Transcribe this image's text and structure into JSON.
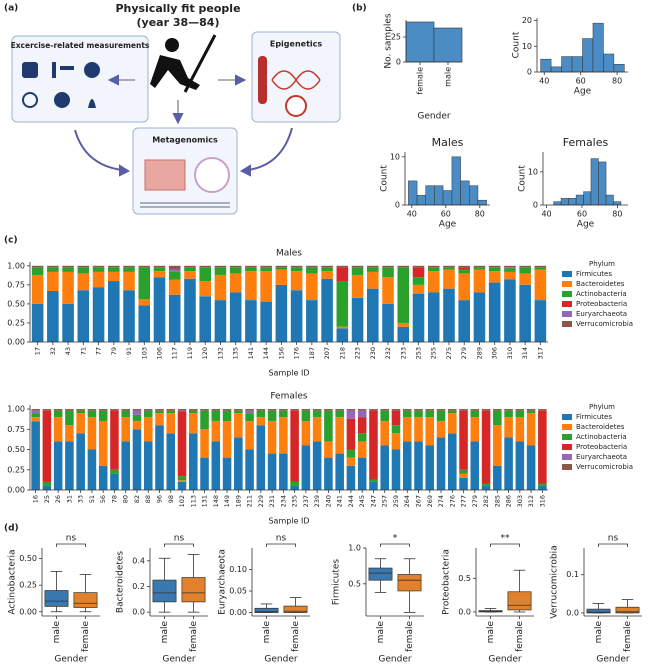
{
  "panel_labels": [
    "(a)",
    "(b)",
    "(c)",
    "(d)"
  ],
  "diagram": {
    "title": "Physically fit people",
    "subtitle": "(year 38—84)",
    "left_box": "Excercise-related measurements",
    "right_box": "Epigenetics",
    "bottom_box": "Metagenomics"
  },
  "chart_data": [
    {
      "type": "bar",
      "categories": [
        "female",
        "male"
      ],
      "values": [
        40,
        34
      ],
      "color": "#4c8cc4",
      "ylim": [
        0,
        42
      ],
      "yticks": [
        0,
        25
      ],
      "ylabel": "No. samples",
      "xlabel": "Gender"
    },
    {
      "type": "histogram",
      "bins": [
        38,
        43.75,
        49.5,
        55.25,
        61,
        66.75,
        72.5,
        78.25,
        84
      ],
      "values": [
        5,
        2,
        6,
        6,
        13,
        19,
        7,
        3
      ],
      "color": "#4c8cc4",
      "xlim": [
        36,
        86
      ],
      "xticks": [
        40,
        60,
        80
      ],
      "ylim": [
        0,
        21
      ],
      "yticks": [
        0,
        10,
        20
      ],
      "xlabel": "Age",
      "ylabel": "Count"
    },
    {
      "type": "histogram",
      "title": "Males",
      "bins": [
        38,
        43.1,
        48.2,
        53.3,
        58.4,
        63.6,
        68.7,
        73.8,
        78.9,
        84
      ],
      "values": [
        5,
        2,
        4,
        4,
        3,
        10,
        5,
        4,
        1
      ],
      "color": "#4c8cc4",
      "xlim": [
        36,
        86
      ],
      "xticks": [
        40,
        60,
        80
      ],
      "ylim": [
        0,
        11
      ],
      "yticks": [
        0,
        10
      ],
      "xlabel": "Age",
      "ylabel": "Count"
    },
    {
      "type": "histogram",
      "title": "Females",
      "bins": [
        44,
        48.2,
        52.4,
        56.7,
        60.9,
        65.1,
        69.3,
        73.6,
        77.8,
        82
      ],
      "values": [
        1,
        2,
        2,
        3,
        4,
        14,
        13,
        3,
        1
      ],
      "color": "#4c8cc4",
      "xlim": [
        38,
        86
      ],
      "xticks": [
        40,
        60,
        80
      ],
      "ylim": [
        0,
        16
      ],
      "yticks": [
        0,
        10
      ],
      "xlabel": "Age",
      "ylabel": "Count"
    },
    {
      "type": "stacked_bar",
      "title": "Males",
      "xlabel": "Sample ID",
      "legend_title": "Phylum",
      "legend": "right",
      "categories": [
        "17",
        "32",
        "43",
        "71",
        "77",
        "79",
        "91",
        "103",
        "106",
        "117",
        "119",
        "120",
        "132",
        "135",
        "141",
        "144",
        "156",
        "176",
        "187",
        "207",
        "218",
        "223",
        "230",
        "232",
        "233",
        "253",
        "255",
        "275",
        "279",
        "289",
        "306",
        "310",
        "314",
        "317"
      ],
      "ylim": [
        0,
        1.05
      ],
      "yticks": [
        {
          "value": 0,
          "label": "0.00"
        },
        {
          "value": 0.25,
          "label": "0.25"
        },
        {
          "value": 0.5,
          "label": "0.50"
        },
        {
          "value": 0.75,
          "label": "0.75"
        },
        {
          "value": 1,
          "label": "1.00"
        }
      ],
      "series": [
        {
          "name": "Firmicutes",
          "color": "#1f77b4",
          "values": [
            0.5,
            0.67,
            0.5,
            0.68,
            0.72,
            0.8,
            0.68,
            0.48,
            0.85,
            0.62,
            0.83,
            0.6,
            0.55,
            0.65,
            0.55,
            0.53,
            0.75,
            0.68,
            0.55,
            0.83,
            0.18,
            0.58,
            0.7,
            0.5,
            0.2,
            0.63,
            0.65,
            0.7,
            0.55,
            0.65,
            0.78,
            0.82,
            0.75,
            0.55
          ]
        },
        {
          "name": "Bacteroidetes",
          "color": "#ff7f0e",
          "values": [
            0.38,
            0.25,
            0.42,
            0.22,
            0.2,
            0.12,
            0.24,
            0.08,
            0.08,
            0.2,
            0.1,
            0.2,
            0.33,
            0.25,
            0.38,
            0.4,
            0.2,
            0.25,
            0.35,
            0.1,
            0.02,
            0.3,
            0.22,
            0.35,
            0.05,
            0.12,
            0.28,
            0.25,
            0.35,
            0.3,
            0.15,
            0.1,
            0.15,
            0.4
          ]
        },
        {
          "name": "Actinobacteria",
          "color": "#2ca02c",
          "values": [
            0.1,
            0.06,
            0.06,
            0.08,
            0.06,
            0.06,
            0.06,
            0.42,
            0.05,
            0.1,
            0.05,
            0.18,
            0.1,
            0.08,
            0.05,
            0.05,
            0.03,
            0.05,
            0.08,
            0.05,
            0.6,
            0.1,
            0.06,
            0.13,
            0.73,
            0.1,
            0.05,
            0.03,
            0.05,
            0.03,
            0.05,
            0.05,
            0.08,
            0.03
          ]
        },
        {
          "name": "Proteobacteria",
          "color": "#d62728",
          "values": [
            0,
            0,
            0,
            0,
            0,
            0,
            0,
            0,
            0,
            0,
            0,
            0,
            0,
            0,
            0,
            0,
            0,
            0,
            0,
            0,
            0.18,
            0,
            0,
            0,
            0,
            0.13,
            0,
            0,
            0.03,
            0,
            0,
            0,
            0,
            0
          ]
        },
        {
          "name": "Euryarchaeota",
          "color": "#9467bd",
          "values": [
            0,
            0,
            0,
            0,
            0,
            0,
            0,
            0,
            0,
            0.03,
            0,
            0,
            0,
            0,
            0,
            0,
            0,
            0,
            0,
            0,
            0,
            0,
            0,
            0,
            0,
            0,
            0,
            0,
            0,
            0,
            0,
            0.01,
            0,
            0
          ]
        },
        {
          "name": "Verrucomicrobia",
          "color": "#8c564b",
          "values": [
            0.02,
            0.02,
            0.02,
            0.02,
            0.02,
            0.02,
            0.02,
            0.02,
            0.02,
            0.05,
            0.02,
            0.02,
            0.02,
            0.02,
            0.02,
            0.02,
            0.02,
            0.02,
            0.02,
            0.02,
            0.02,
            0.02,
            0.02,
            0.02,
            0.02,
            0.02,
            0.02,
            0.02,
            0.02,
            0.02,
            0.02,
            0.02,
            0.02,
            0.02
          ]
        }
      ]
    },
    {
      "type": "stacked_bar",
      "title": "Females",
      "xlabel": "Sample ID",
      "legend_title": "Phylum",
      "legend": "right",
      "categories": [
        "16",
        "25",
        "26",
        "31",
        "33",
        "51",
        "56",
        "78",
        "80",
        "82",
        "88",
        "96",
        "98",
        "102",
        "113",
        "131",
        "148",
        "149",
        "189",
        "211",
        "229",
        "231",
        "234",
        "235",
        "237",
        "239",
        "240",
        "241",
        "244",
        "245",
        "247",
        "257",
        "259",
        "264",
        "267",
        "269",
        "274",
        "276",
        "277",
        "279",
        "282",
        "285",
        "286",
        "303",
        "312",
        "316"
      ],
      "ylim": [
        0,
        1.05
      ],
      "yticks": [
        {
          "value": 0,
          "label": "0.00"
        },
        {
          "value": 0.25,
          "label": "0.25"
        },
        {
          "value": 0.5,
          "label": "0.50"
        },
        {
          "value": 0.75,
          "label": "0.75"
        },
        {
          "value": 1,
          "label": "1.00"
        }
      ],
      "series": [
        {
          "name": "Firmicutes",
          "color": "#1f77b4",
          "values": [
            0.85,
            0.05,
            0.6,
            0.6,
            0.7,
            0.5,
            0.3,
            0.2,
            0.6,
            0.75,
            0.6,
            0.8,
            0.7,
            0.1,
            0.7,
            0.4,
            0.6,
            0.4,
            0.65,
            0.5,
            0.8,
            0.45,
            0.45,
            0.05,
            0.55,
            0.6,
            0.4,
            0.45,
            0.3,
            0.4,
            0.1,
            0.55,
            0.5,
            0.6,
            0.6,
            0.55,
            0.65,
            0.7,
            0.15,
            0.6,
            0.05,
            0.3,
            0.65,
            0.6,
            0.55,
            0.05
          ]
        },
        {
          "name": "Bacteroidetes",
          "color": "#ff7f0e",
          "values": [
            0.05,
            0,
            0.3,
            0.2,
            0.25,
            0.4,
            0.55,
            0,
            0.3,
            0.1,
            0.3,
            0.15,
            0.25,
            0.02,
            0.25,
            0.35,
            0.25,
            0.45,
            0.3,
            0.35,
            0.1,
            0.4,
            0.45,
            0,
            0.3,
            0.3,
            0.2,
            0.45,
            0.1,
            0.2,
            0,
            0.3,
            0.2,
            0.3,
            0.3,
            0.35,
            0.2,
            0.25,
            0.05,
            0.3,
            0,
            0.5,
            0.25,
            0.3,
            0.4,
            0
          ]
        },
        {
          "name": "Actinobacteria",
          "color": "#2ca02c",
          "values": [
            0.05,
            0.05,
            0.08,
            0.18,
            0.03,
            0.08,
            0.13,
            0.05,
            0.08,
            0.08,
            0.08,
            0.03,
            0.03,
            0.05,
            0.03,
            0.23,
            0.13,
            0.13,
            0.03,
            0.1,
            0.08,
            0.13,
            0.08,
            0.05,
            0.13,
            0.08,
            0.38,
            0.08,
            0.1,
            0.1,
            0.03,
            0.13,
            0.1,
            0.08,
            0.08,
            0.08,
            0.13,
            0.03,
            0.05,
            0.08,
            0.03,
            0.18,
            0.08,
            0.08,
            0.03,
            0.03
          ]
        },
        {
          "name": "Proteobacteria",
          "color": "#d62728",
          "values": [
            0,
            0.88,
            0,
            0,
            0,
            0,
            0,
            0.73,
            0,
            0,
            0,
            0,
            0,
            0.8,
            0,
            0,
            0,
            0,
            0,
            0,
            0,
            0,
            0,
            0.88,
            0,
            0,
            0,
            0,
            0.38,
            0.2,
            0.85,
            0,
            0.18,
            0,
            0,
            0,
            0,
            0,
            0.73,
            0,
            0.9,
            0,
            0,
            0,
            0,
            0.9
          ]
        },
        {
          "name": "Euryarchaeota",
          "color": "#9467bd",
          "values": [
            0.03,
            0,
            0,
            0,
            0,
            0,
            0,
            0,
            0,
            0.05,
            0,
            0,
            0,
            0.01,
            0,
            0,
            0,
            0,
            0,
            0.03,
            0,
            0,
            0,
            0,
            0,
            0,
            0,
            0,
            0.1,
            0.08,
            0,
            0,
            0,
            0,
            0,
            0,
            0,
            0,
            0,
            0,
            0,
            0,
            0,
            0,
            0,
            0
          ]
        },
        {
          "name": "Verrucomicrobia",
          "color": "#8c564b",
          "values": [
            0.02,
            0.02,
            0.02,
            0.02,
            0.02,
            0.02,
            0.02,
            0.02,
            0.02,
            0.02,
            0.02,
            0.02,
            0.02,
            0.02,
            0.02,
            0.02,
            0.02,
            0.02,
            0.02,
            0.02,
            0.02,
            0.02,
            0.02,
            0.02,
            0.02,
            0.02,
            0.02,
            0.02,
            0.02,
            0.02,
            0.02,
            0.02,
            0.02,
            0.02,
            0.02,
            0.02,
            0.02,
            0.02,
            0.02,
            0.02,
            0.02,
            0.02,
            0.02,
            0.02,
            0.02,
            0.02
          ]
        }
      ]
    },
    {
      "type": "box",
      "ylabel": "Actinobacteria",
      "xlabel": "Gender",
      "significance": "ns",
      "categories": [
        "male",
        "female"
      ],
      "colors": [
        "#3a78b0",
        "#e1812c"
      ],
      "ylim": [
        -0.04,
        0.6
      ],
      "yticks": [
        {
          "value": 0,
          "label": "0.00"
        },
        {
          "value": 0.25,
          "label": "0.25"
        },
        {
          "value": 0.5,
          "label": "0.50"
        }
      ],
      "stats": [
        {
          "min": 0,
          "q1": 0.05,
          "median": 0.1,
          "q3": 0.2,
          "max": 0.38
        },
        {
          "min": 0,
          "q1": 0.04,
          "median": 0.08,
          "q3": 0.18,
          "max": 0.35
        }
      ]
    },
    {
      "type": "box",
      "ylabel": "Bacteroidetes",
      "xlabel": "Gender",
      "significance": "ns",
      "categories": [
        "male",
        "female"
      ],
      "colors": [
        "#3a78b0",
        "#e1812c"
      ],
      "ylim": [
        -0.03,
        0.5
      ],
      "yticks": [
        {
          "value": 0,
          "label": "0.0"
        },
        0.2,
        0.4
      ],
      "stats": [
        {
          "min": 0,
          "q1": 0.08,
          "median": 0.15,
          "q3": 0.25,
          "max": 0.42
        },
        {
          "min": 0,
          "q1": 0.08,
          "median": 0.15,
          "q3": 0.27,
          "max": 0.45
        }
      ]
    },
    {
      "type": "box",
      "ylabel": "Euryarchaeota",
      "xlabel": "Gender",
      "significance": "ns",
      "categories": [
        "male",
        "female"
      ],
      "colors": [
        "#3a78b0",
        "#e1812c"
      ],
      "ylim": [
        -0.008,
        0.15
      ],
      "yticks": [
        {
          "value": 0,
          "label": "0.00"
        },
        0.05,
        {
          "value": 0.1,
          "label": "0.10"
        }
      ],
      "stats": [
        {
          "min": 0,
          "q1": 0,
          "median": 0.002,
          "q3": 0.01,
          "max": 0.02
        },
        {
          "min": 0,
          "q1": 0,
          "median": 0.003,
          "q3": 0.015,
          "max": 0.035
        }
      ]
    },
    {
      "type": "box",
      "ylabel": "Firmicutes",
      "xlabel": "Gender",
      "significance": "*",
      "categories": [
        "male",
        "female"
      ],
      "colors": [
        "#3a78b0",
        "#e1812c"
      ],
      "ylim": [
        0.05,
        1.0
      ],
      "yticks": [
        0.5,
        {
          "value": 1,
          "label": "1.0"
        }
      ],
      "stats": [
        {
          "min": 0.38,
          "q1": 0.55,
          "median": 0.65,
          "q3": 0.72,
          "max": 0.85
        },
        {
          "min": 0.1,
          "q1": 0.4,
          "median": 0.55,
          "q3": 0.63,
          "max": 0.85
        }
      ]
    },
    {
      "type": "box",
      "ylabel": "Proteobacteria",
      "xlabel": "Gender",
      "significance": "**",
      "categories": [
        "male",
        "female"
      ],
      "colors": [
        "#3a78b0",
        "#e1812c"
      ],
      "ylim": [
        -0.06,
        0.95
      ],
      "yticks": [
        {
          "value": 0,
          "label": "0.0"
        },
        0.5
      ],
      "stats": [
        {
          "min": 0,
          "q1": 0,
          "median": 0.01,
          "q3": 0.02,
          "max": 0.05
        },
        {
          "min": 0,
          "q1": 0.03,
          "median": 0.1,
          "q3": 0.3,
          "max": 0.62
        }
      ]
    },
    {
      "type": "box",
      "ylabel": "Verrucomicrobia",
      "xlabel": "Gender",
      "significance": "ns",
      "categories": [
        "male",
        "female"
      ],
      "colors": [
        "#3a78b0",
        "#e1812c"
      ],
      "ylim": [
        -0.008,
        0.17
      ],
      "yticks": [
        {
          "value": 0,
          "label": "0.0"
        },
        0.1
      ],
      "stats": [
        {
          "min": 0,
          "q1": 0,
          "median": 0.002,
          "q3": 0.01,
          "max": 0.025
        },
        {
          "min": 0,
          "q1": 0,
          "median": 0.003,
          "q3": 0.015,
          "max": 0.035
        }
      ]
    }
  ]
}
